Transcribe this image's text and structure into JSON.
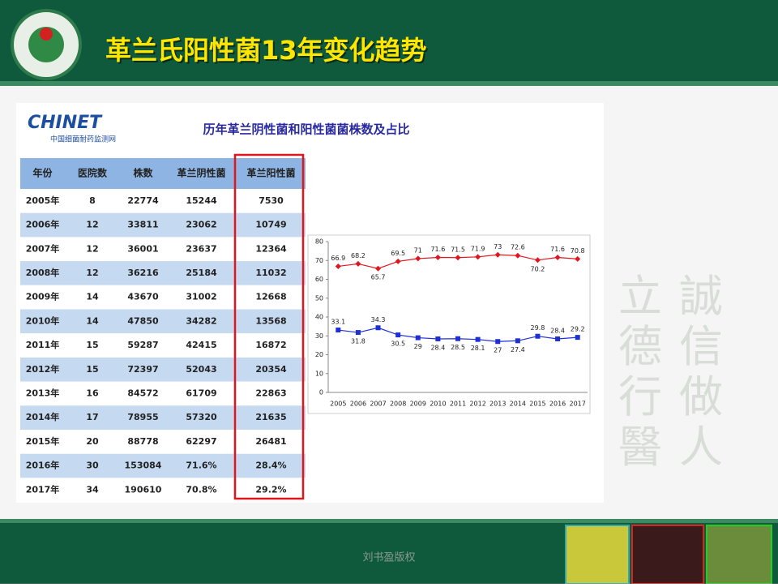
{
  "header": {
    "title": "革兰氏阳性菌13年变化趋势"
  },
  "logo": {
    "name": "CHINET",
    "subtitle": "中国细菌耐药监测网"
  },
  "subtitle": "历年革兰阴性菌和阳性菌菌株数及占比",
  "table": {
    "header": [
      "年份",
      "医院数",
      "株数",
      "革兰阴性菌",
      "革兰阳性菌"
    ],
    "rows": [
      [
        "2005年",
        "8",
        "22774",
        "15244",
        "7530"
      ],
      [
        "2006年",
        "12",
        "33811",
        "23062",
        "10749"
      ],
      [
        "2007年",
        "12",
        "36001",
        "23637",
        "12364"
      ],
      [
        "2008年",
        "12",
        "36216",
        "25184",
        "11032"
      ],
      [
        "2009年",
        "14",
        "43670",
        "31002",
        "12668"
      ],
      [
        "2010年",
        "14",
        "47850",
        "34282",
        "13568"
      ],
      [
        "2011年",
        "15",
        "59287",
        "42415",
        "16872"
      ],
      [
        "2012年",
        "15",
        "72397",
        "52043",
        "20354"
      ],
      [
        "2013年",
        "16",
        "84572",
        "61709",
        "22863"
      ],
      [
        "2014年",
        "17",
        "78955",
        "57320",
        "21635"
      ],
      [
        "2015年",
        "20",
        "88778",
        "62297",
        "26481"
      ],
      [
        "2016年",
        "30",
        "153084",
        "71.6%",
        "28.4%"
      ],
      [
        "2017年",
        "34",
        "190610",
        "70.8%",
        "29.2%"
      ]
    ]
  },
  "chart_data": {
    "type": "line",
    "categories": [
      "2005",
      "2006",
      "2007",
      "2008",
      "2009",
      "2010",
      "2011",
      "2012",
      "2013",
      "2014",
      "2015",
      "2016",
      "2017"
    ],
    "series": [
      {
        "color": "#e0161e",
        "marker": "diamond",
        "values": [
          66.9,
          68.2,
          65.7,
          69.5,
          71,
          71.6,
          71.5,
          71.9,
          73,
          72.6,
          70.2,
          71.6,
          70.8
        ]
      },
      {
        "color": "#1f2fd6",
        "marker": "square",
        "values": [
          33.1,
          31.8,
          34.3,
          30.5,
          29,
          28.4,
          28.5,
          28.1,
          27,
          27.4,
          29.8,
          28.4,
          29.2
        ]
      }
    ],
    "ylim": [
      0,
      80
    ],
    "yticks": [
      0,
      10,
      20,
      30,
      40,
      50,
      60,
      70,
      80
    ]
  },
  "calligraphy": {
    "right": "誠信做人",
    "left": "立德行醫"
  },
  "footer": "刘书盈版权"
}
